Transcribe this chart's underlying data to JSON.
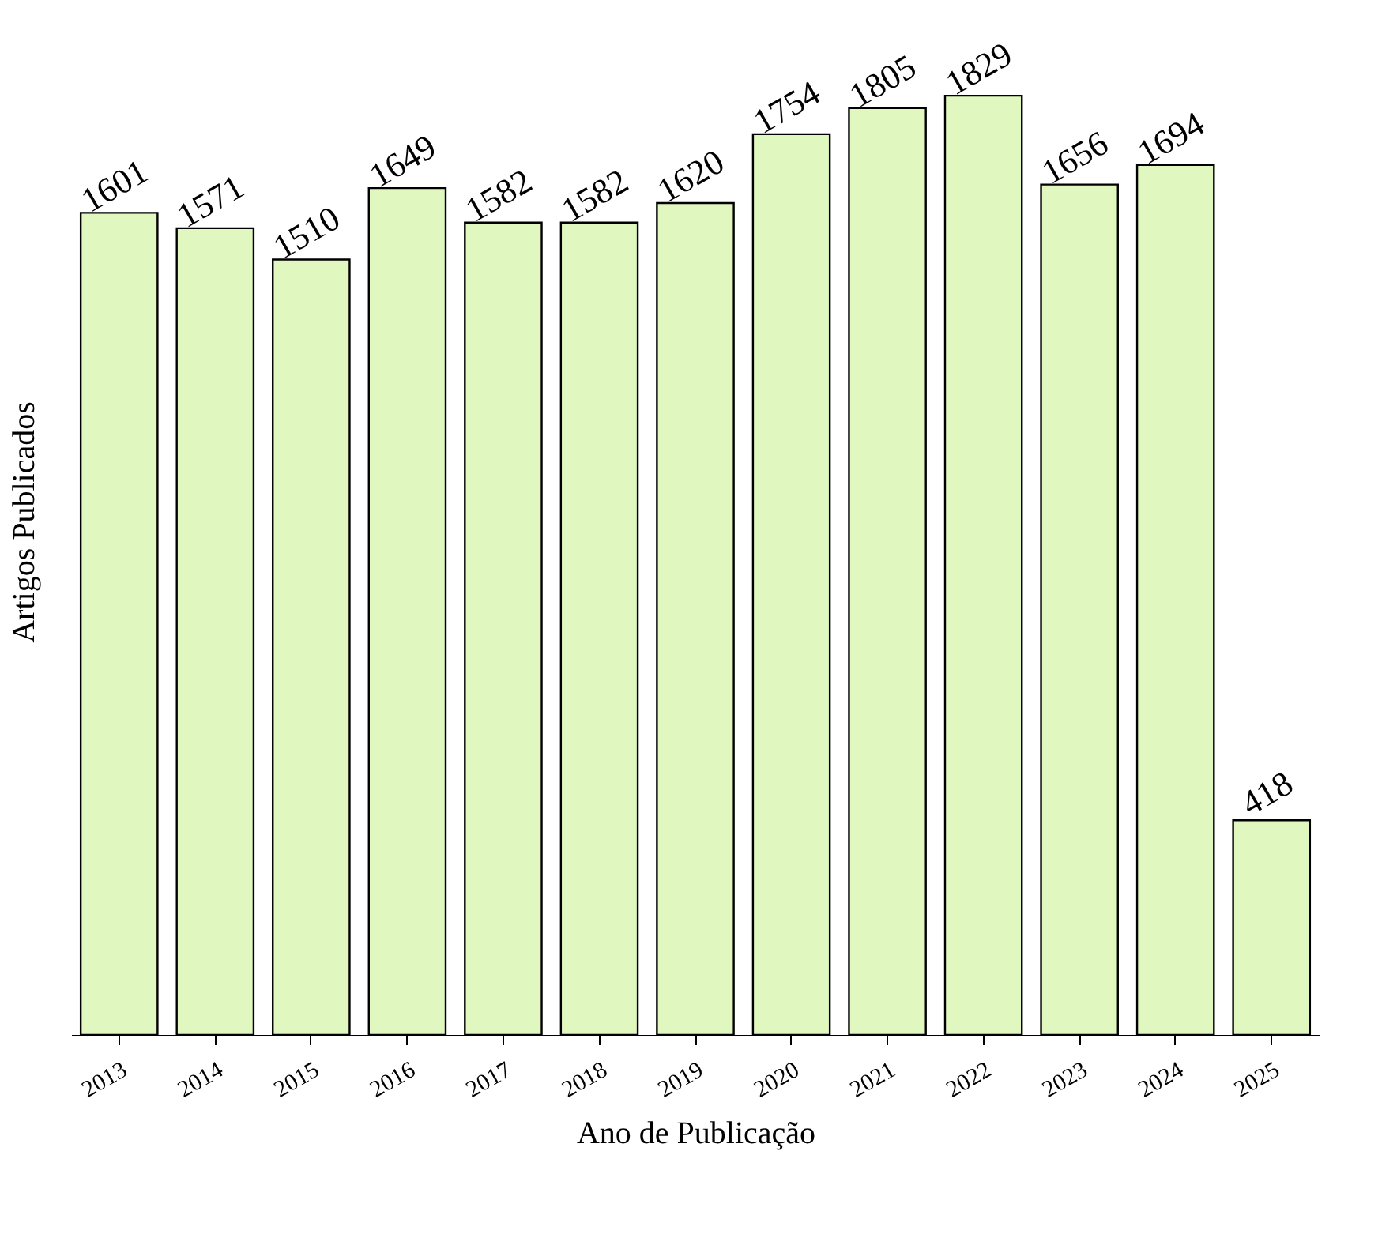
{
  "chart_data": {
    "type": "bar",
    "xlabel": "Ano de Publicação",
    "ylabel": "Artigos Publicados",
    "categories": [
      "2013",
      "2014",
      "2015",
      "2016",
      "2017",
      "2018",
      "2019",
      "2020",
      "2021",
      "2022",
      "2023",
      "2024",
      "2025"
    ],
    "values": [
      1601,
      1571,
      1510,
      1649,
      1582,
      1582,
      1620,
      1754,
      1805,
      1829,
      1656,
      1694,
      418
    ],
    "color": "#e0f7c0",
    "data_labels": true,
    "tick_labels": "x",
    "grid": false
  }
}
